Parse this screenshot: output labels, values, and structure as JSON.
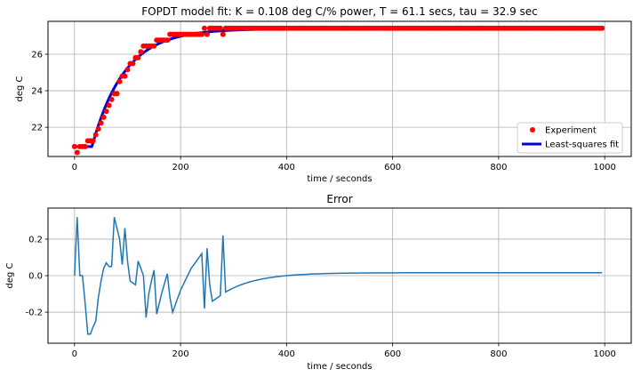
{
  "chart_data": [
    {
      "type": "scatter+line",
      "title": "FOPDT model fit: K = 0.108 deg C/% power, T =   61.1 secs, tau =   32.9 sec",
      "xlabel": "time / seconds",
      "ylabel": "deg C",
      "xlim": [
        -50,
        1050
      ],
      "ylim": [
        20.4,
        27.8
      ],
      "xticks": [
        0,
        200,
        400,
        600,
        800,
        1000
      ],
      "yticks": [
        22,
        24,
        26
      ],
      "grid": true,
      "legend_position": "lower-right",
      "colors": {
        "experiment": "#ff0000",
        "fit": "#0000cc"
      },
      "series": [
        {
          "name": "Experiment",
          "kind": "points",
          "x": [
            0,
            5,
            10,
            15,
            20,
            25,
            30,
            35,
            40,
            45,
            50,
            55,
            60,
            65,
            70,
            75,
            80,
            85,
            90,
            95,
            100,
            105,
            110,
            115,
            120,
            125,
            130,
            135,
            140,
            145,
            150,
            155,
            160,
            165,
            170,
            175,
            180,
            185,
            190,
            195,
            200,
            205,
            210,
            215,
            220,
            225,
            230,
            235,
            240,
            245,
            250,
            255,
            260,
            265,
            270,
            275,
            280,
            285
          ],
          "y": [
            20.94,
            20.62,
            20.94,
            20.94,
            20.94,
            21.26,
            21.26,
            21.26,
            21.59,
            21.91,
            22.23,
            22.55,
            22.87,
            23.2,
            23.52,
            23.84,
            23.84,
            24.5,
            24.8,
            24.8,
            25.16,
            25.49,
            25.49,
            25.81,
            25.81,
            26.13,
            26.45,
            26.45,
            26.45,
            26.45,
            26.45,
            26.77,
            26.77,
            26.77,
            26.77,
            26.77,
            27.09,
            27.09,
            27.09,
            27.09,
            27.09,
            27.09,
            27.09,
            27.09,
            27.09,
            27.09,
            27.09,
            27.09,
            27.09,
            27.42,
            27.09,
            27.42,
            27.42,
            27.42,
            27.42,
            27.42,
            27.09,
            27.42
          ]
        },
        {
          "name": "Least-squares fit",
          "kind": "line",
          "K": 0.108,
          "T": 61.1,
          "tau": 32.9,
          "y0": 20.94,
          "y_final": 27.4,
          "x_end": 995
        }
      ],
      "steady_value": 27.42,
      "steady_x_range": [
        290,
        995
      ]
    },
    {
      "type": "line",
      "title": "Error",
      "xlabel": "time / seconds",
      "ylabel": "deg C",
      "xlim": [
        -50,
        1050
      ],
      "ylim": [
        -0.37,
        0.37
      ],
      "xticks": [
        0,
        200,
        400,
        600,
        800,
        1000
      ],
      "yticks": [
        -0.2,
        0.0,
        0.2
      ],
      "grid": true,
      "colors": {
        "line": "#1f77b4"
      },
      "series": [
        {
          "x": [
            0,
            5,
            10,
            15,
            20,
            25,
            30,
            35,
            40,
            45,
            50,
            55,
            60,
            65,
            70,
            75,
            80,
            85,
            90,
            95,
            100,
            105,
            110,
            115,
            120,
            125,
            130,
            135,
            140,
            145,
            150,
            155,
            160,
            165,
            170,
            175,
            180,
            185,
            190,
            195,
            200,
            205,
            210,
            215,
            220,
            225,
            230,
            235,
            240,
            245,
            250,
            255,
            260,
            265,
            270,
            275,
            280,
            285
          ],
          "y": [
            0.0,
            0.32,
            0.0,
            0.0,
            -0.15,
            -0.32,
            -0.32,
            -0.28,
            -0.25,
            -0.12,
            -0.03,
            0.04,
            0.07,
            0.05,
            0.05,
            0.32,
            0.26,
            0.2,
            0.06,
            0.26,
            0.08,
            -0.03,
            -0.04,
            -0.05,
            0.08,
            0.04,
            -0.0,
            -0.23,
            -0.1,
            -0.03,
            0.03,
            -0.21,
            -0.15,
            -0.09,
            -0.04,
            0.01,
            -0.12,
            -0.2,
            -0.16,
            -0.12,
            -0.08,
            -0.05,
            -0.02,
            0.01,
            0.04,
            0.06,
            0.08,
            0.1,
            0.12,
            -0.18,
            0.15,
            -0.05,
            -0.14,
            -0.13,
            -0.12,
            -0.11,
            0.22,
            -0.09
          ],
          "tail_from_x": 285,
          "tail_to_x": 995,
          "tail_start": -0.09,
          "tail_end": 0.016,
          "tail_timeconst": 61.1
        }
      ]
    }
  ]
}
